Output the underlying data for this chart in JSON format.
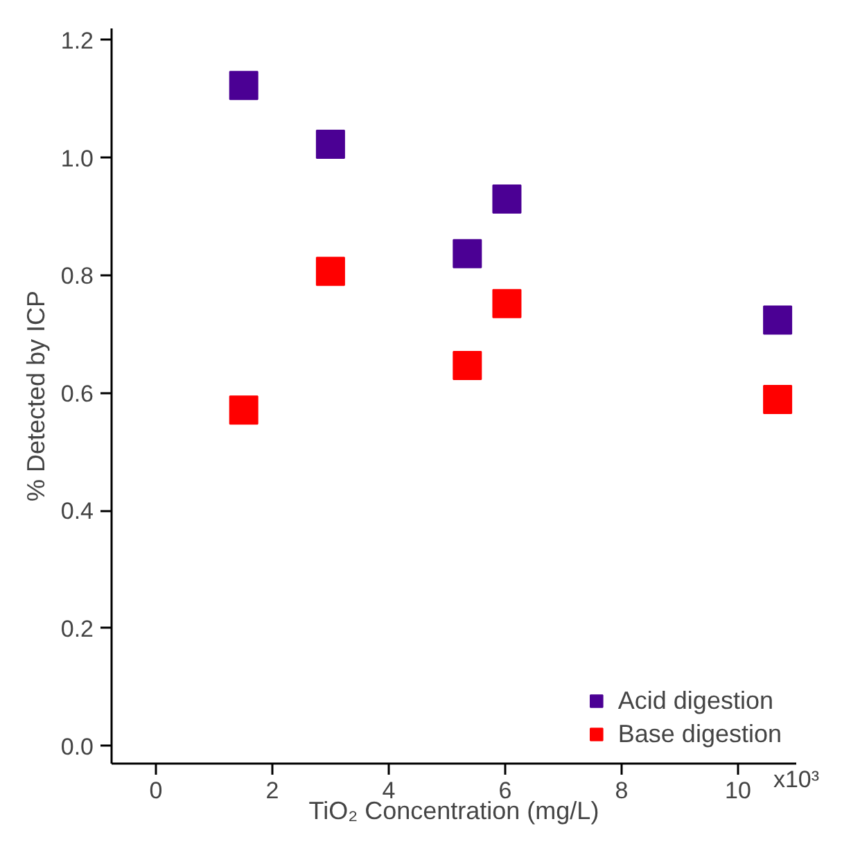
{
  "chart_data": {
    "type": "scatter",
    "xlabel": "TiO₂ Concentration (mg/L)",
    "ylabel": "% Detected by ICP",
    "x": [
      1.51,
      3.0,
      5.35,
      6.03,
      10.68
    ],
    "series": [
      {
        "name": "Acid digestion",
        "color": "#4b0094",
        "values": [
          1.123,
          1.023,
          0.837,
          0.93,
          0.724
        ]
      },
      {
        "name": "Base digestion",
        "color": "#ff0000",
        "values": [
          0.571,
          0.807,
          0.647,
          0.752,
          0.589
        ]
      }
    ],
    "xlim": [
      -0.76,
      11.0
    ],
    "ylim": [
      -0.03,
      1.22
    ],
    "xticks": [
      0,
      2,
      4,
      6,
      8,
      10
    ],
    "annotations": [
      "x10³"
    ],
    "yticks": [
      {
        "value": 0,
        "label": "0.0"
      },
      0.2,
      0.4,
      0.6,
      0.8,
      {
        "value": 1,
        "label": "1.0"
      },
      1.2
    ],
    "marker": "square",
    "legend": "bottom right",
    "grid": false
  }
}
